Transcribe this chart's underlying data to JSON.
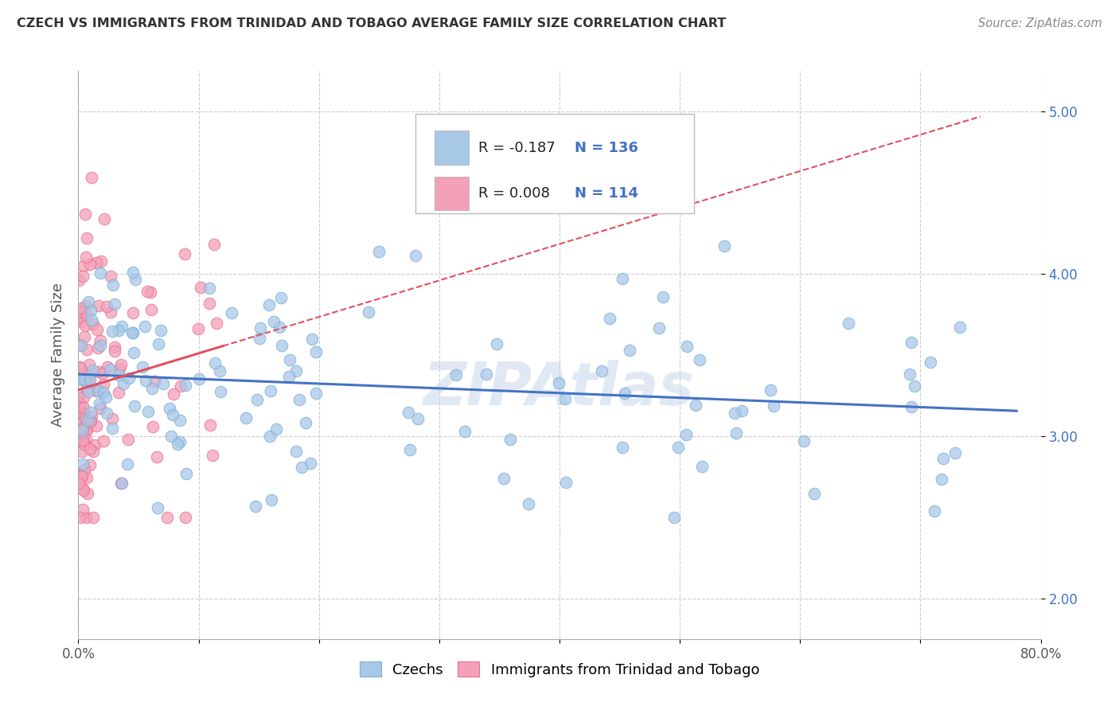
{
  "title": "CZECH VS IMMIGRANTS FROM TRINIDAD AND TOBAGO AVERAGE FAMILY SIZE CORRELATION CHART",
  "source": "Source: ZipAtlas.com",
  "ylabel": "Average Family Size",
  "xlim": [
    0.0,
    80.0
  ],
  "ylim": [
    1.75,
    5.25
  ],
  "yticks": [
    2.0,
    3.0,
    4.0,
    5.0
  ],
  "xticks": [
    0.0,
    10.0,
    20.0,
    30.0,
    40.0,
    50.0,
    60.0,
    70.0,
    80.0
  ],
  "legend_blue_r": "R = -0.187",
  "legend_blue_n": "N = 136",
  "legend_pink_r": "R = 0.008",
  "legend_pink_n": "N = 114",
  "blue_color": "#a8c8e8",
  "pink_color": "#f4a0b8",
  "blue_edge_color": "#7bafd4",
  "pink_edge_color": "#e87090",
  "blue_line_color": "#4472c4",
  "pink_line_color": "#e05060",
  "title_color": "#333333",
  "source_color": "#888888",
  "grid_color": "#cccccc",
  "legend_n_color": "#4472c4",
  "background_color": "#ffffff",
  "watermark_text": "ZIPAtlas",
  "watermark_color": "#c8d8ea",
  "blue_N": 136,
  "pink_N": 114,
  "blue_R": -0.187,
  "pink_R": 0.008,
  "blue_seed": 42,
  "pink_seed": 77
}
